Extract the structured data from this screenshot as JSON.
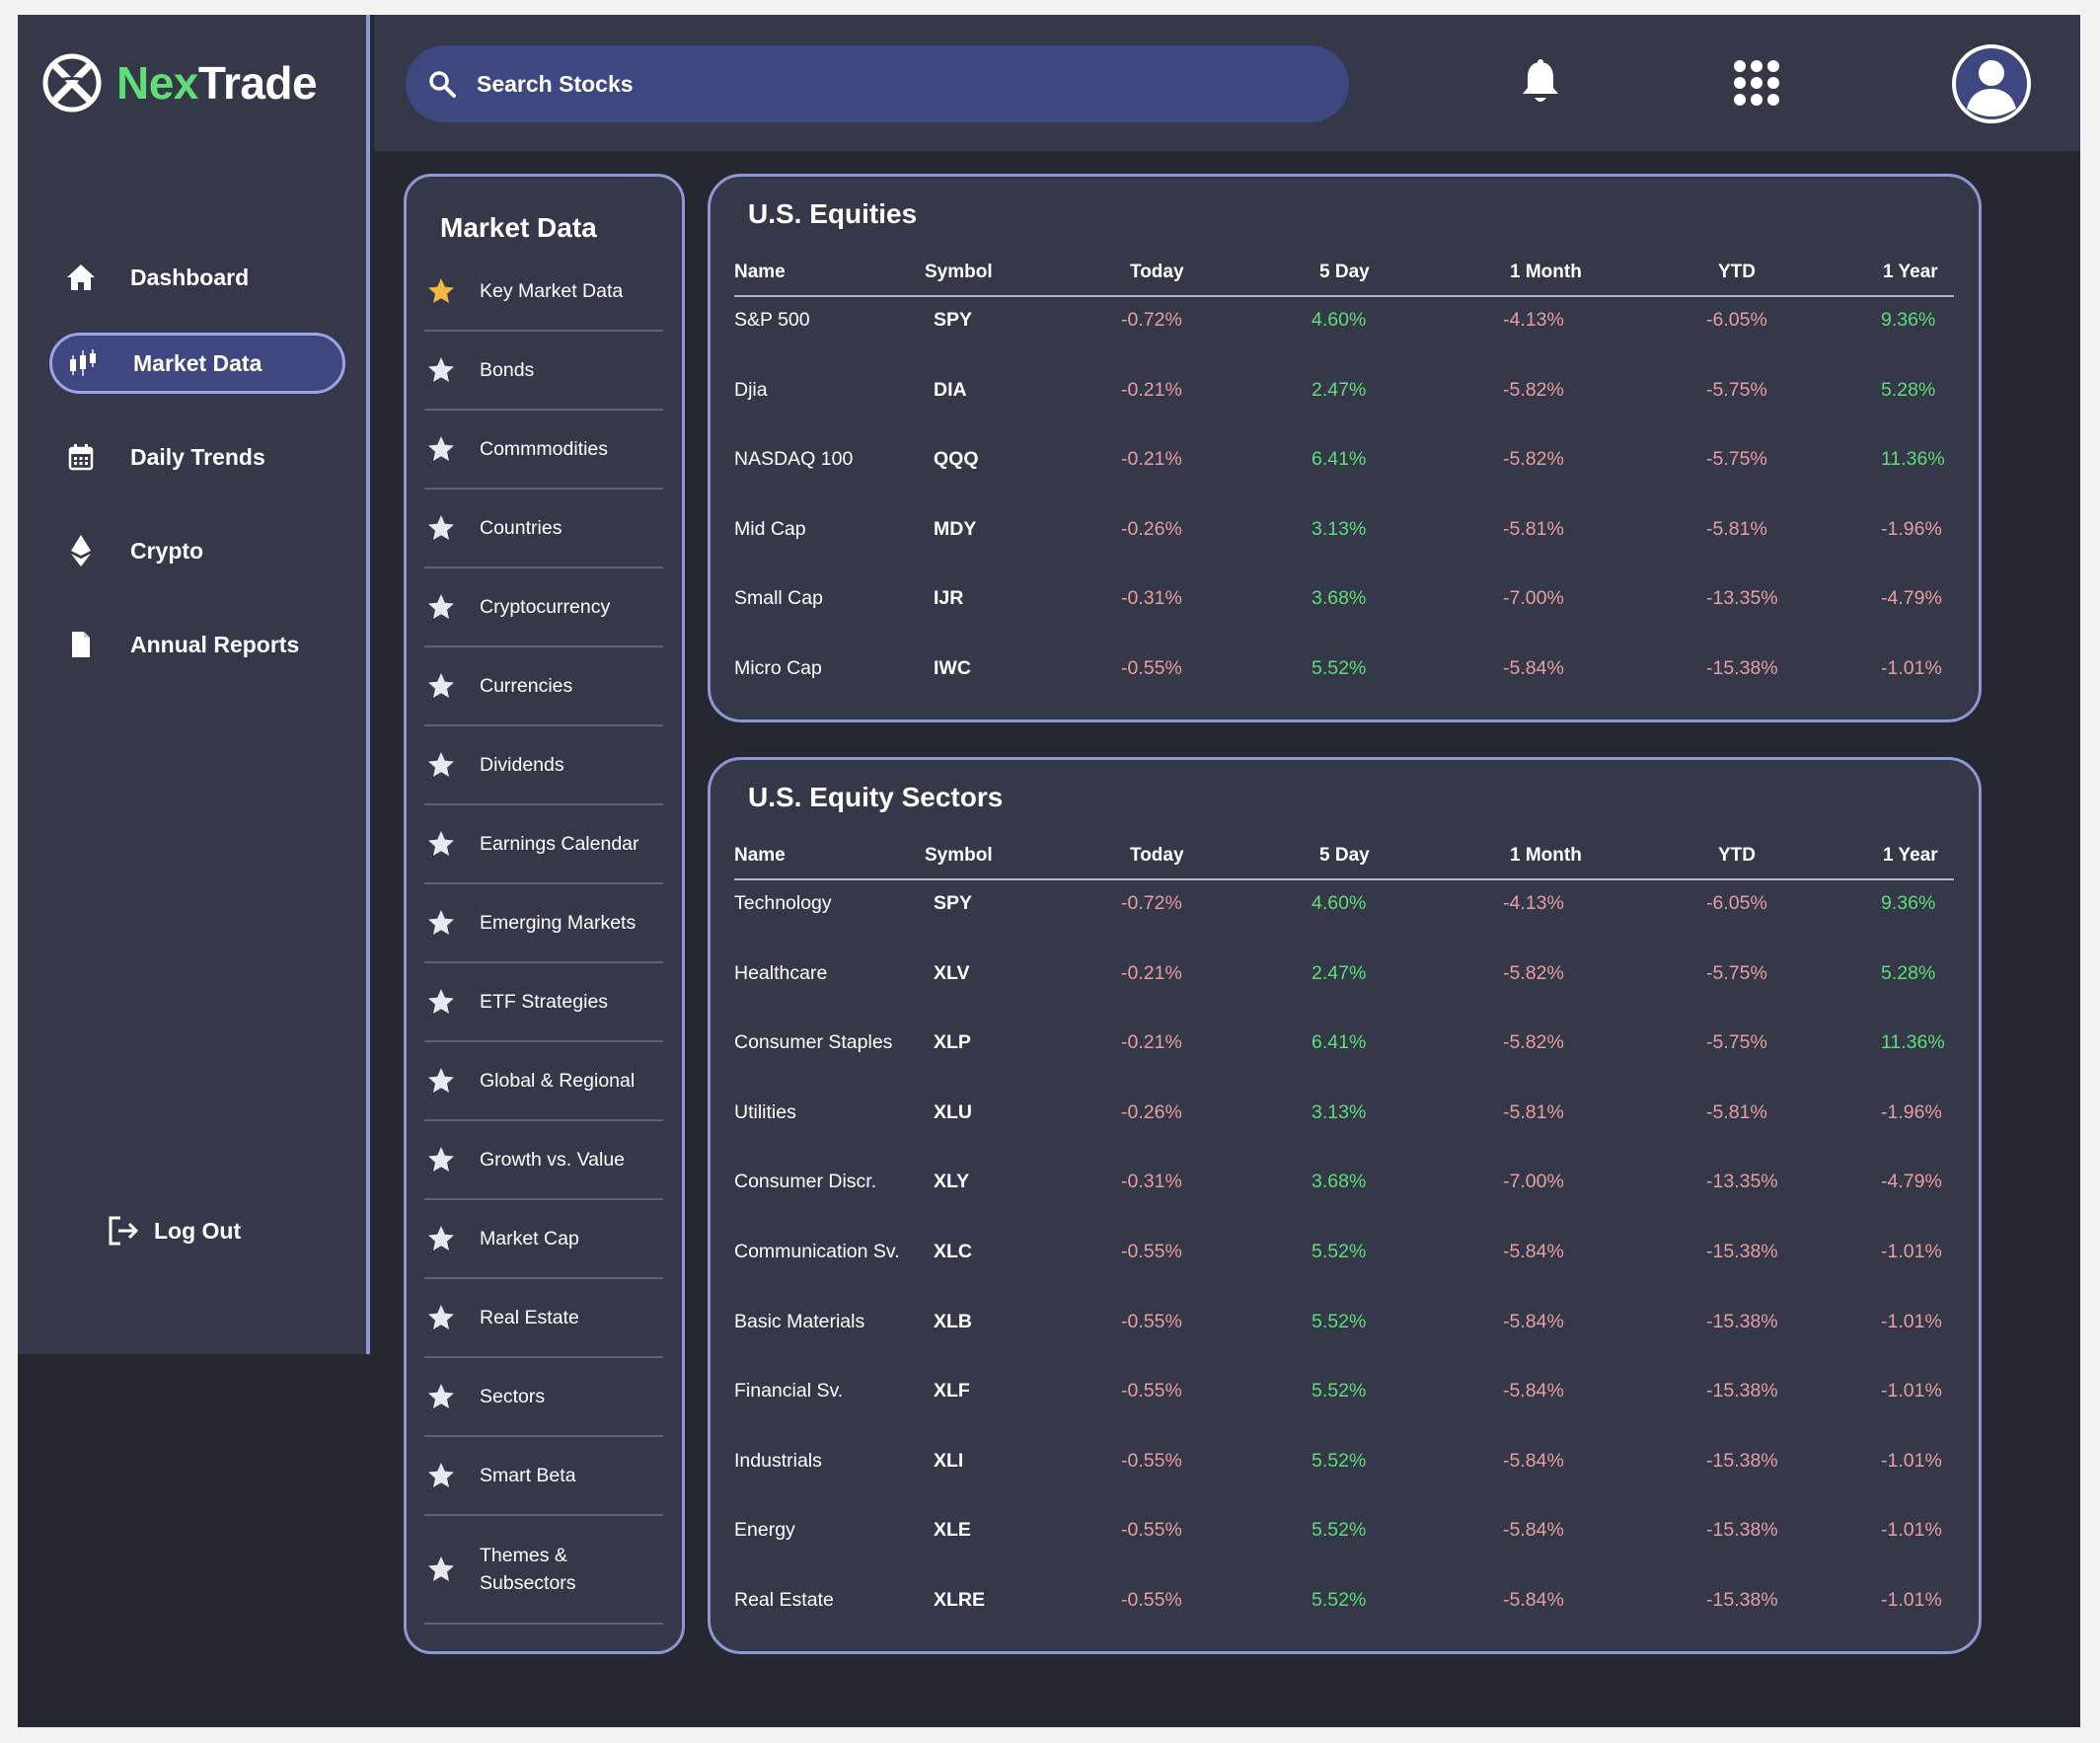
{
  "app": {
    "brand_part1": "Nex",
    "brand_part2": "Trade"
  },
  "sidebar": {
    "items": [
      {
        "label": "Dashboard",
        "icon": "home-icon"
      },
      {
        "label": "Market Data",
        "icon": "candlestick-icon",
        "active": true
      },
      {
        "label": "Daily Trends",
        "icon": "calendar-icon"
      },
      {
        "label": "Crypto",
        "icon": "ethereum-icon"
      },
      {
        "label": "Annual Reports",
        "icon": "document-icon"
      }
    ],
    "logout_label": "Log Out"
  },
  "topbar": {
    "search_placeholder": "Search Stocks"
  },
  "market_data_panel": {
    "title": "Market Data",
    "items": [
      "Key Market Data",
      "Bonds",
      "Commmodities",
      "Countries",
      "Cryptocurrency",
      "Currencies",
      "Dividends",
      "Earnings Calendar",
      "Emerging Markets",
      "ETF Strategies",
      "Global & Regional",
      "Growth vs. Value",
      "Market Cap",
      "Real Estate",
      "Sectors",
      "Smart Beta",
      "Themes &",
      "Subsectors"
    ],
    "starred_item": "Key Market Data"
  },
  "columns": [
    "Name",
    "Symbol",
    "Today",
    "5 Day",
    "1 Month",
    "YTD",
    "1 Year"
  ],
  "equities": {
    "title": "U.S. Equities",
    "rows": [
      [
        "S&P 500",
        "SPY",
        "-0.72%",
        "4.60%",
        "-4.13%",
        "-6.05%",
        "9.36%"
      ],
      [
        "Djia",
        "DIA",
        "-0.21%",
        "2.47%",
        "-5.82%",
        "-5.75%",
        "5.28%"
      ],
      [
        "NASDAQ 100",
        "QQQ",
        "-0.21%",
        "6.41%",
        "-5.82%",
        "-5.75%",
        "11.36%"
      ],
      [
        "Mid Cap",
        "MDY",
        "-0.26%",
        "3.13%",
        "-5.81%",
        "-5.81%",
        "-1.96%"
      ],
      [
        "Small Cap",
        "IJR",
        "-0.31%",
        "3.68%",
        "-7.00%",
        "-13.35%",
        "-4.79%"
      ],
      [
        "Micro Cap",
        "IWC",
        "-0.55%",
        "5.52%",
        "-5.84%",
        "-15.38%",
        "-1.01%"
      ]
    ]
  },
  "sectors": {
    "title": "U.S. Equity Sectors",
    "rows": [
      [
        "Technology",
        "SPY",
        "-0.72%",
        "4.60%",
        "-4.13%",
        "-6.05%",
        "9.36%"
      ],
      [
        "Healthcare",
        "XLV",
        "-0.21%",
        "2.47%",
        "-5.82%",
        "-5.75%",
        "5.28%"
      ],
      [
        "Consumer Staples",
        "XLP",
        "-0.21%",
        "6.41%",
        "-5.82%",
        "-5.75%",
        "11.36%"
      ],
      [
        "Utilities",
        "XLU",
        "-0.26%",
        "3.13%",
        "-5.81%",
        "-5.81%",
        "-1.96%"
      ],
      [
        "Consumer Discr.",
        "XLY",
        "-0.31%",
        "3.68%",
        "-7.00%",
        "-13.35%",
        "-4.79%"
      ],
      [
        "Communication Sv.",
        "XLC",
        "-0.55%",
        "5.52%",
        "-5.84%",
        "-15.38%",
        "-1.01%"
      ],
      [
        "Basic Materials",
        "XLB",
        "-0.55%",
        "5.52%",
        "-5.84%",
        "-15.38%",
        "-1.01%"
      ],
      [
        "Financial Sv.",
        "XLF",
        "-0.55%",
        "5.52%",
        "-5.84%",
        "-15.38%",
        "-1.01%"
      ],
      [
        "Industrials",
        "XLI",
        "-0.55%",
        "5.52%",
        "-5.84%",
        "-15.38%",
        "-1.01%"
      ],
      [
        "Energy",
        "XLE",
        "-0.55%",
        "5.52%",
        "-5.84%",
        "-15.38%",
        "-1.01%"
      ],
      [
        "Real Estate",
        "XLRE",
        "-0.55%",
        "5.52%",
        "-5.84%",
        "-15.38%",
        "-1.01%"
      ]
    ]
  },
  "colors": {
    "positive": "#5fdd77",
    "negative": "#e89e9e",
    "accent": "#3e4780",
    "border": "#8e97d4",
    "panel": "#343848",
    "background": "#252831"
  }
}
